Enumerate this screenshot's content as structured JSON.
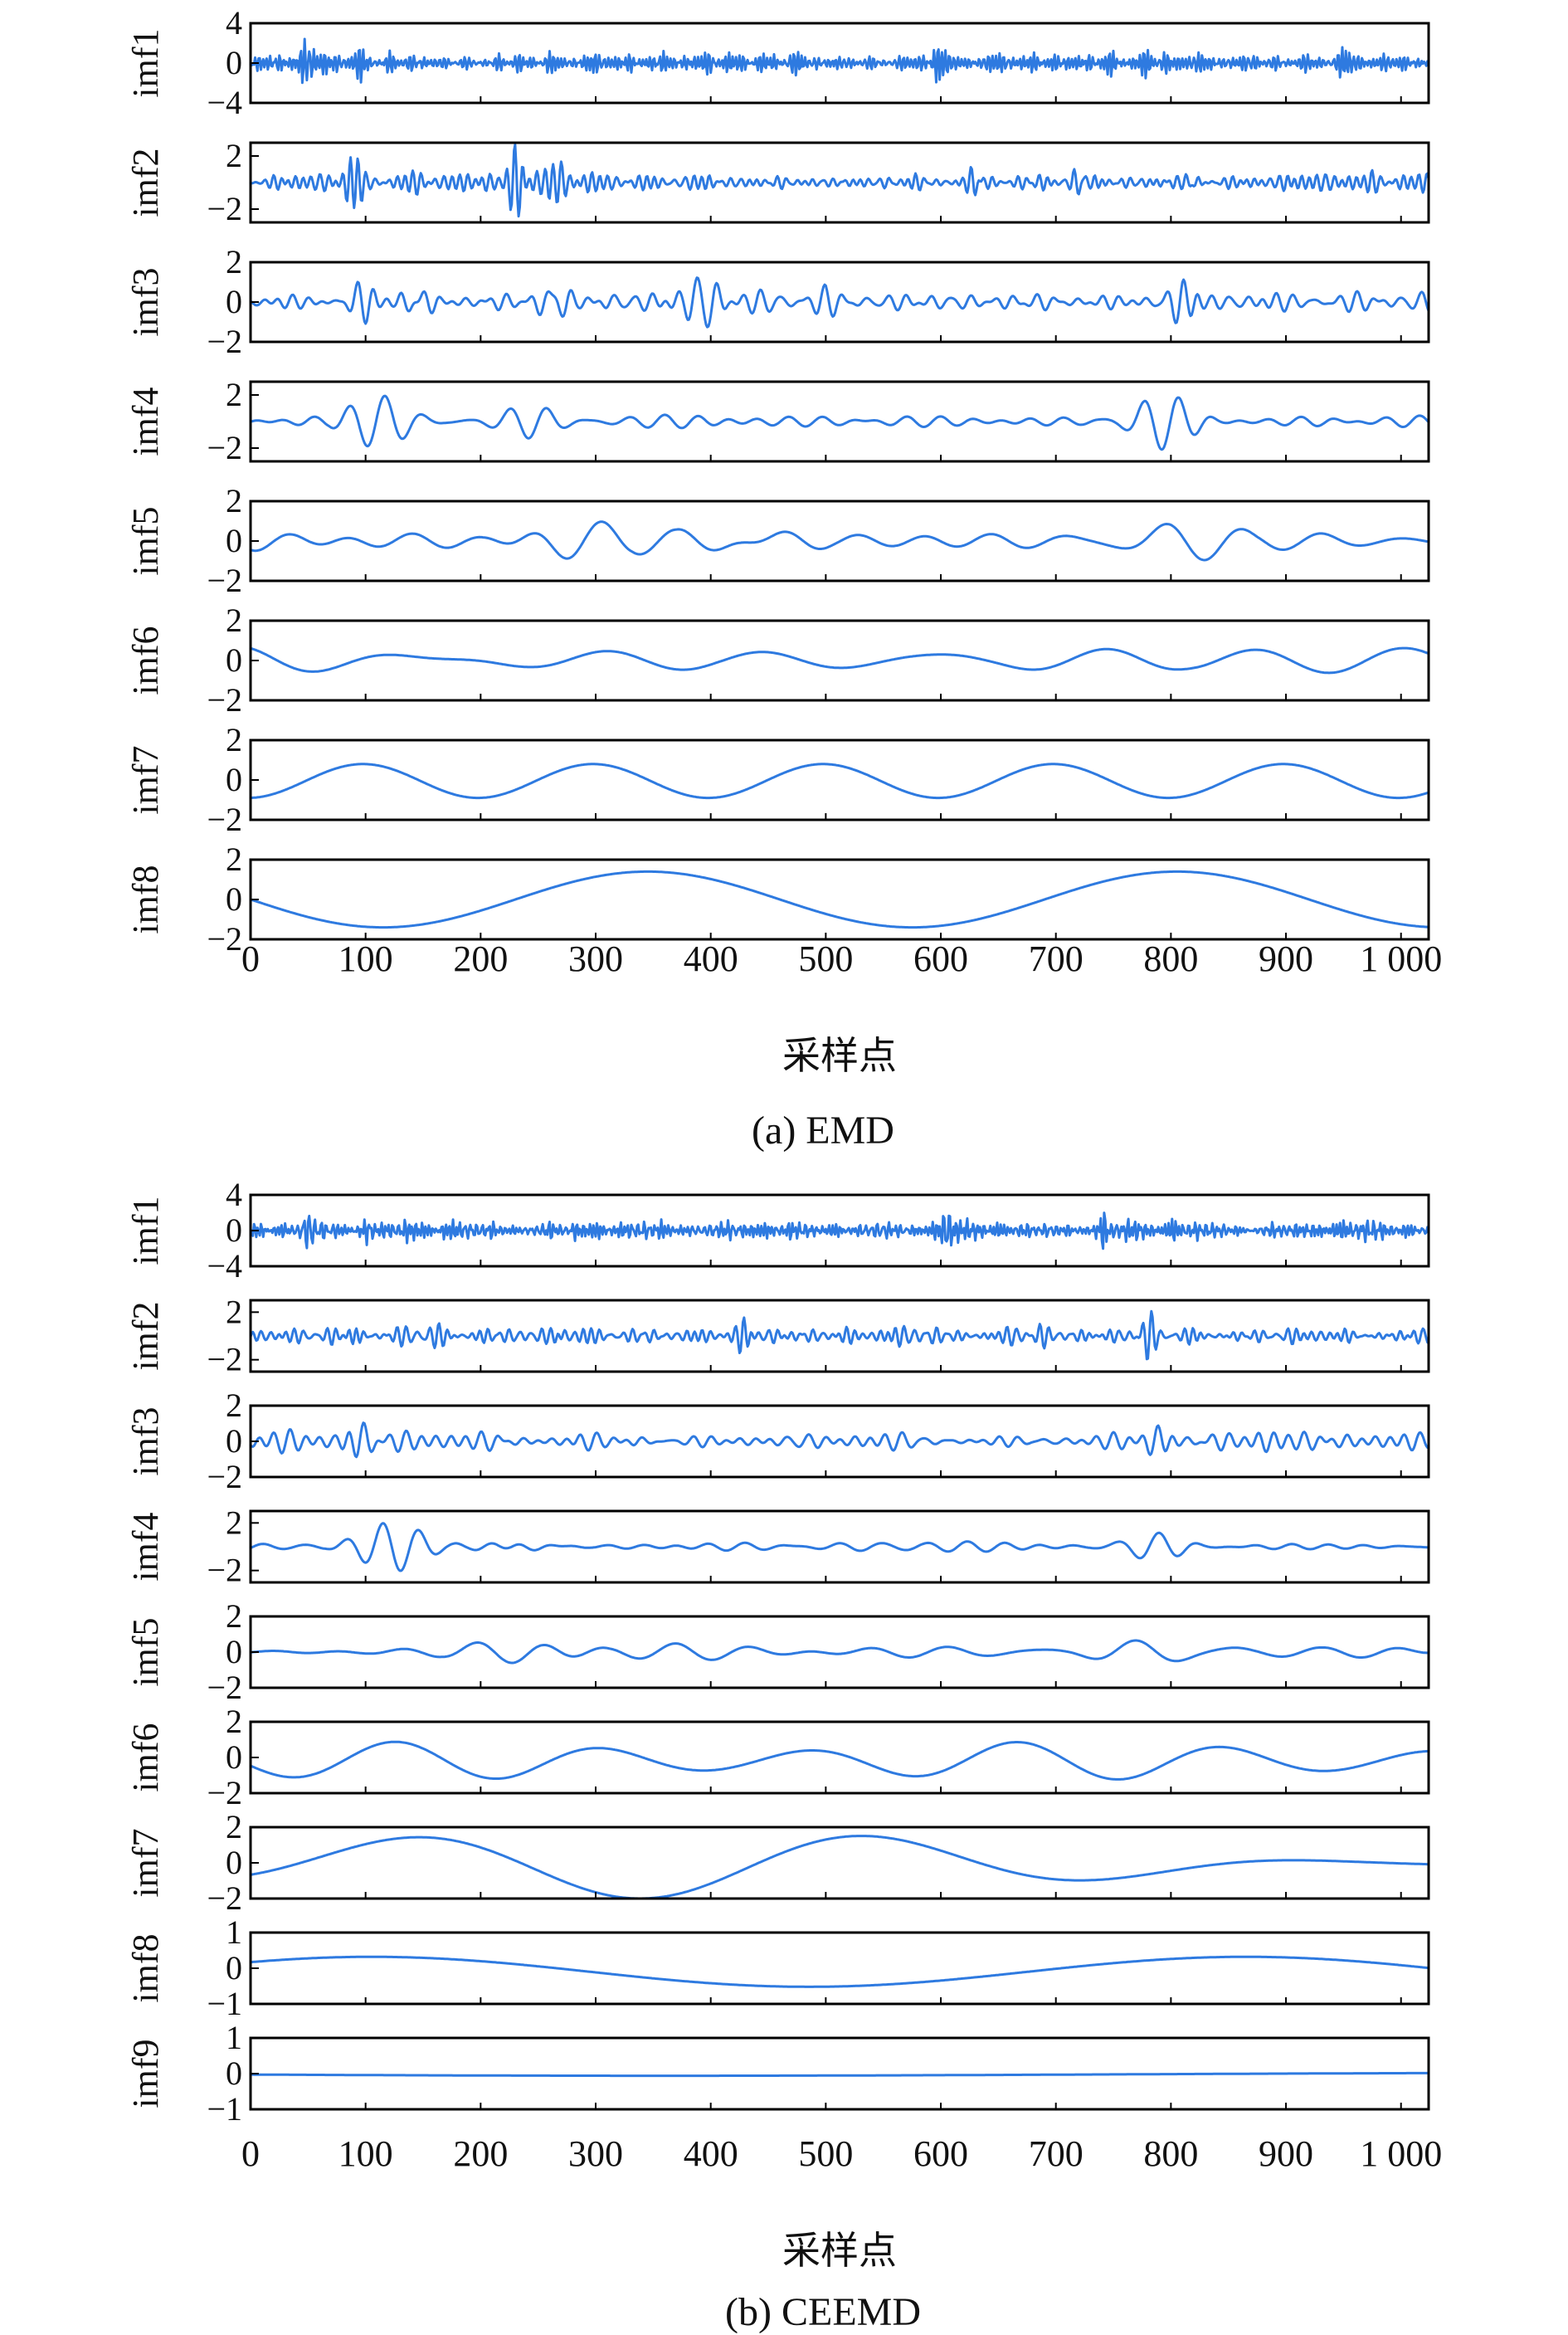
{
  "colors": {
    "signal": "#2e7ae0",
    "axis": "#000000"
  },
  "chart_data": [
    {
      "type": "line",
      "caption": "(a) EMD",
      "xlabel": "采样点",
      "x_range": [
        0,
        1024
      ],
      "x_ticks": [
        0,
        100,
        200,
        300,
        400,
        500,
        600,
        700,
        800,
        900,
        1000
      ],
      "x_tick_labels": [
        "0",
        "100",
        "200",
        "300",
        "400",
        "500",
        "600",
        "700",
        "800",
        "900",
        "1 000"
      ],
      "panels": [
        {
          "name": "imf1",
          "ylim": [
            -4,
            4
          ],
          "yticks": [
            4,
            0,
            -4
          ],
          "ytick_labels": [
            "4",
            "0",
            "−4"
          ],
          "signal": {
            "kind": "noise",
            "amp": 1.1,
            "seed": 11,
            "period": 4,
            "bursts": [
              [
                50,
                3.0
              ],
              [
                100,
                2.6
              ],
              [
                600,
                3.2
              ],
              [
                950,
                2.2
              ]
            ]
          }
        },
        {
          "name": "imf2",
          "ylim": [
            -3,
            3
          ],
          "yticks": [
            2,
            -2
          ],
          "ytick_labels": [
            "2",
            "−2"
          ],
          "signal": {
            "kind": "noise",
            "amp": 0.7,
            "seed": 23,
            "period": 8,
            "bursts": [
              [
                90,
                2.4
              ],
              [
                230,
                2.4
              ],
              [
                265,
                2.6
              ],
              [
                630,
                1.6
              ],
              [
                720,
                1.8
              ],
              [
                820,
                1.7
              ]
            ]
          }
        },
        {
          "name": "imf3",
          "ylim": [
            -2,
            2
          ],
          "yticks": [
            2,
            0,
            -2
          ],
          "ytick_labels": [
            "2",
            "0",
            "−2"
          ],
          "signal": {
            "kind": "noise",
            "amp": 0.55,
            "seed": 37,
            "period": 16,
            "bursts": [
              [
                95,
                1.7
              ],
              [
                145,
                1.8
              ],
              [
                260,
                1.6
              ],
              [
                395,
                1.5
              ],
              [
                810,
                1.6
              ]
            ]
          }
        },
        {
          "name": "imf4",
          "ylim": [
            -3,
            3
          ],
          "yticks": [
            2,
            -2
          ],
          "ytick_labels": [
            "2",
            "−2"
          ],
          "signal": {
            "kind": "noise",
            "amp": 0.45,
            "seed": 53,
            "period": 32,
            "bursts": [
              [
                120,
                2.4
              ],
              [
                240,
                2.3
              ],
              [
                790,
                2.3
              ]
            ]
          }
        },
        {
          "name": "imf5",
          "ylim": [
            -2,
            2
          ],
          "yticks": [
            2,
            0,
            -2
          ],
          "ytick_labels": [
            "2",
            "0",
            "−2"
          ],
          "signal": {
            "kind": "noise",
            "amp": 0.55,
            "seed": 71,
            "period": 64,
            "bursts": [
              [
                270,
                1.1
              ],
              [
                430,
                1.2
              ],
              [
                800,
                1.2
              ]
            ]
          }
        },
        {
          "name": "imf6",
          "ylim": [
            -2,
            2
          ],
          "yticks": [
            2,
            0,
            -2
          ],
          "ytick_labels": [
            "2",
            "0",
            "−2"
          ],
          "signal": {
            "kind": "noise",
            "amp": 0.8,
            "seed": 89,
            "period": 128,
            "bursts": [
              [
                180,
                0.8
              ],
              [
                700,
                0.8
              ]
            ]
          }
        },
        {
          "name": "imf7",
          "ylim": [
            -2,
            2
          ],
          "yticks": [
            2,
            0,
            -2
          ],
          "ytick_labels": [
            "2",
            "0",
            "−2"
          ],
          "signal": {
            "kind": "sine",
            "amp": 0.85,
            "period": 200,
            "phase": -1.5,
            "offset": -0.05
          }
        },
        {
          "name": "imf8",
          "ylim": [
            -2,
            2
          ],
          "yticks": [
            2,
            0,
            -2
          ],
          "ytick_labels": [
            "2",
            "0",
            "−2"
          ],
          "signal": {
            "kind": "sine",
            "amp": 1.4,
            "period": 460,
            "phase": 3.14,
            "offset": 0
          }
        }
      ]
    },
    {
      "type": "line",
      "caption": "(b) CEEMD",
      "xlabel": "采样点",
      "x_range": [
        0,
        1024
      ],
      "x_ticks": [
        0,
        100,
        200,
        300,
        400,
        500,
        600,
        700,
        800,
        900,
        1000
      ],
      "x_tick_labels": [
        "0",
        "100",
        "200",
        "300",
        "400",
        "500",
        "600",
        "700",
        "800",
        "900",
        "1 000"
      ],
      "panels": [
        {
          "name": "imf1",
          "ylim": [
            -4,
            4
          ],
          "yticks": [
            4,
            0,
            -4
          ],
          "ytick_labels": [
            "4",
            "0",
            "−4"
          ],
          "signal": {
            "kind": "noise",
            "amp": 1.1,
            "seed": 113,
            "period": 4,
            "bursts": [
              [
                50,
                3.0
              ],
              [
                100,
                2.6
              ],
              [
                605,
                3.2
              ],
              [
                740,
                2.6
              ]
            ]
          }
        },
        {
          "name": "imf2",
          "ylim": [
            -3,
            3
          ],
          "yticks": [
            2,
            -2
          ],
          "ytick_labels": [
            "2",
            "−2"
          ],
          "signal": {
            "kind": "noise",
            "amp": 0.75,
            "seed": 127,
            "period": 8,
            "bursts": [
              [
                90,
                2.5
              ],
              [
                270,
                1.6
              ],
              [
                430,
                1.7
              ],
              [
                780,
                1.6
              ]
            ]
          }
        },
        {
          "name": "imf3",
          "ylim": [
            -2,
            2
          ],
          "yticks": [
            2,
            0,
            -2
          ],
          "ytick_labels": [
            "2",
            "0",
            "−2"
          ],
          "signal": {
            "kind": "noise",
            "amp": 0.5,
            "seed": 149,
            "period": 16,
            "bursts": [
              [
                95,
                1.6
              ],
              [
                790,
                1.3
              ]
            ]
          }
        },
        {
          "name": "imf4",
          "ylim": [
            -3,
            3
          ],
          "yticks": [
            2,
            -2
          ],
          "ytick_labels": [
            "2",
            "−2"
          ],
          "signal": {
            "kind": "noise",
            "amp": 0.45,
            "seed": 163,
            "period": 32,
            "bursts": [
              [
                120,
                2.3
              ],
              [
                240,
                2.4
              ],
              [
                780,
                1.8
              ]
            ]
          }
        },
        {
          "name": "imf5",
          "ylim": [
            -2,
            2
          ],
          "yticks": [
            2,
            0,
            -2
          ],
          "ytick_labels": [
            "2",
            "0",
            "−2"
          ],
          "signal": {
            "kind": "noise",
            "amp": 0.55,
            "seed": 181,
            "period": 64,
            "bursts": [
              [
                240,
                1.2
              ],
              [
                790,
                1.3
              ]
            ]
          }
        },
        {
          "name": "imf6",
          "ylim": [
            -2,
            2
          ],
          "yticks": [
            2,
            0,
            -2
          ],
          "ytick_labels": [
            "2",
            "0",
            "−2"
          ],
          "signal": {
            "kind": "sine",
            "amp": 0.8,
            "period": 180,
            "phase": -2.8,
            "offset": -0.2,
            "mod": 0.35,
            "mod_period": 560
          }
        },
        {
          "name": "imf7",
          "ylim": [
            -2,
            2
          ],
          "yticks": [
            2,
            0,
            -2
          ],
          "ytick_labels": [
            "2",
            "0",
            "−2"
          ],
          "signal": {
            "kind": "sine",
            "amp": 1.0,
            "period": 400,
            "phase": -0.6,
            "offset": -0.1,
            "mod": 0.9,
            "mod_period": 1400
          }
        },
        {
          "name": "imf8",
          "ylim": [
            -1,
            1
          ],
          "yticks": [
            1,
            0,
            -1
          ],
          "ytick_labels": [
            "1",
            "0",
            "−1"
          ],
          "signal": {
            "kind": "sine",
            "amp": 0.42,
            "period": 760,
            "phase": 0.7,
            "offset": -0.1
          }
        },
        {
          "name": "imf9",
          "ylim": [
            -1,
            1
          ],
          "yticks": [
            1,
            0,
            -1
          ],
          "ytick_labels": [
            "1",
            "0",
            "−1"
          ],
          "signal": {
            "kind": "sine",
            "amp": 0.04,
            "period": 1600,
            "phase": 3.3,
            "offset": -0.02
          }
        }
      ]
    }
  ]
}
